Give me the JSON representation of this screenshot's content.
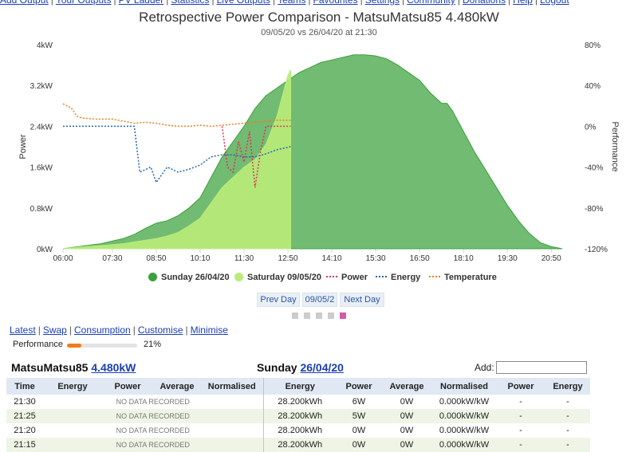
{
  "nav": {
    "links": [
      "Add Output",
      "Your Outputs",
      "PV Ladder",
      "Statistics",
      "Live Outputs",
      "Teams",
      "Favourites",
      "Settings",
      "Community",
      "Donations",
      "Help",
      "Logout"
    ]
  },
  "chart": {
    "title": "Retrospective Power Comparison - MatsuMatsu85 4.480kW",
    "subtitle": "09/05/20 vs 26/04/20 at 21:30"
  },
  "chart_data": {
    "type": "area",
    "x_ticks": [
      "06:00",
      "07:30",
      "08:50",
      "10:10",
      "11:30",
      "12:50",
      "14:10",
      "15:30",
      "16:50",
      "18:10",
      "19:30",
      "20:50"
    ],
    "y_left": {
      "label": "Power",
      "ticks": [
        "0kW",
        "0.8kW",
        "1.6kW",
        "2.4kW",
        "3.2kW",
        "4kW"
      ],
      "range": [
        0,
        4
      ]
    },
    "y_right": {
      "label": "Performance",
      "ticks": [
        "-120%",
        "-80%",
        "-40%",
        "0%",
        "40%",
        "80%"
      ],
      "range": [
        -120,
        80
      ]
    },
    "colors": {
      "sunday": "#3ba13b",
      "saturday": "#b8ec7a",
      "power": "#e0364e",
      "energy": "#2166ac",
      "temperature": "#f07c1b"
    },
    "series": [
      {
        "name": "Sunday 26/04/20",
        "unit": "kW",
        "points": [
          [
            "06:00",
            0
          ],
          [
            "06:35",
            0.05
          ],
          [
            "07:10",
            0.1
          ],
          [
            "07:30",
            0.15
          ],
          [
            "07:50",
            0.2
          ],
          [
            "08:10",
            0.28
          ],
          [
            "08:30",
            0.4
          ],
          [
            "08:50",
            0.5
          ],
          [
            "09:10",
            0.55
          ],
          [
            "09:30",
            0.65
          ],
          [
            "09:50",
            0.8
          ],
          [
            "10:10",
            1.0
          ],
          [
            "10:30",
            1.4
          ],
          [
            "10:50",
            1.8
          ],
          [
            "11:10",
            2.1
          ],
          [
            "11:30",
            2.4
          ],
          [
            "11:50",
            2.75
          ],
          [
            "12:10",
            3.0
          ],
          [
            "12:30",
            3.15
          ],
          [
            "12:50",
            3.3
          ],
          [
            "13:10",
            3.45
          ],
          [
            "13:30",
            3.55
          ],
          [
            "13:50",
            3.65
          ],
          [
            "14:10",
            3.7
          ],
          [
            "14:30",
            3.75
          ],
          [
            "14:50",
            3.8
          ],
          [
            "15:10",
            3.8
          ],
          [
            "15:30",
            3.78
          ],
          [
            "15:50",
            3.72
          ],
          [
            "16:10",
            3.6
          ],
          [
            "16:30",
            3.45
          ],
          [
            "16:50",
            3.3
          ],
          [
            "17:10",
            3.05
          ],
          [
            "17:30",
            2.85
          ],
          [
            "17:40",
            2.85
          ],
          [
            "17:50",
            2.7
          ],
          [
            "18:10",
            2.3
          ],
          [
            "18:30",
            1.9
          ],
          [
            "18:50",
            1.55
          ],
          [
            "19:10",
            1.2
          ],
          [
            "19:30",
            0.85
          ],
          [
            "19:50",
            0.55
          ],
          [
            "20:10",
            0.3
          ],
          [
            "20:30",
            0.12
          ],
          [
            "20:50",
            0.04
          ],
          [
            "21:10",
            0.0
          ]
        ]
      },
      {
        "name": "Saturday 09/05/20",
        "unit": "kW",
        "points": [
          [
            "06:00",
            0
          ],
          [
            "06:40",
            0.04
          ],
          [
            "07:20",
            0.07
          ],
          [
            "07:50",
            0.1
          ],
          [
            "08:20",
            0.15
          ],
          [
            "08:50",
            0.2
          ],
          [
            "09:10",
            0.25
          ],
          [
            "09:30",
            0.32
          ],
          [
            "09:50",
            0.45
          ],
          [
            "10:10",
            0.6
          ],
          [
            "10:30",
            0.9
          ],
          [
            "10:50",
            1.2
          ],
          [
            "11:10",
            1.4
          ],
          [
            "11:30",
            1.6
          ],
          [
            "11:50",
            1.75
          ],
          [
            "12:10",
            2.05
          ],
          [
            "12:30",
            2.6
          ],
          [
            "12:50",
            3.4
          ],
          [
            "12:55",
            3.5
          ]
        ]
      },
      {
        "name": "Power",
        "axis": "right",
        "unit": "%",
        "points": [
          [
            "10:50",
            0
          ],
          [
            "11:00",
            -40
          ],
          [
            "11:10",
            -45
          ],
          [
            "11:20",
            -15
          ],
          [
            "11:30",
            -35
          ],
          [
            "11:40",
            -5
          ],
          [
            "11:50",
            -60
          ],
          [
            "12:00",
            -25
          ],
          [
            "12:10",
            0
          ],
          [
            "12:30",
            0
          ],
          [
            "12:55",
            0
          ]
        ]
      },
      {
        "name": "Energy",
        "axis": "right",
        "unit": "%",
        "points": [
          [
            "06:00",
            0
          ],
          [
            "08:10",
            0
          ],
          [
            "08:20",
            -45
          ],
          [
            "08:40",
            -40
          ],
          [
            "08:50",
            -55
          ],
          [
            "09:10",
            -40
          ],
          [
            "09:30",
            -45
          ],
          [
            "09:50",
            -42
          ],
          [
            "10:10",
            -38
          ],
          [
            "10:30",
            -30
          ],
          [
            "10:50",
            -28
          ],
          [
            "11:10",
            -28
          ],
          [
            "11:30",
            -30
          ],
          [
            "11:50",
            -30
          ],
          [
            "12:10",
            -27
          ],
          [
            "12:30",
            -23
          ],
          [
            "12:55",
            -20
          ]
        ]
      },
      {
        "name": "Temperature",
        "axis": "right",
        "unit": "%",
        "points": [
          [
            "06:00",
            22
          ],
          [
            "06:15",
            18
          ],
          [
            "06:25",
            10
          ],
          [
            "06:35",
            8
          ],
          [
            "07:00",
            7
          ],
          [
            "07:30",
            7
          ],
          [
            "07:50",
            5
          ],
          [
            "08:10",
            3
          ],
          [
            "08:30",
            4
          ],
          [
            "08:50",
            3
          ],
          [
            "09:10",
            1
          ],
          [
            "09:30",
            0
          ],
          [
            "09:50",
            0
          ],
          [
            "10:10",
            1
          ],
          [
            "10:30",
            0
          ],
          [
            "10:50",
            1
          ],
          [
            "11:10",
            2
          ],
          [
            "11:30",
            3
          ],
          [
            "11:50",
            4
          ],
          [
            "12:10",
            5
          ],
          [
            "12:30",
            6
          ],
          [
            "12:55",
            6
          ]
        ]
      }
    ],
    "legend_position": "bottom",
    "grid": false
  },
  "legend": {
    "items": [
      "Sunday 26/04/20",
      "Saturday 09/05/20",
      "Power",
      "Energy",
      "Temperature"
    ]
  },
  "day_controls": {
    "prev": "Prev Day",
    "current": "09/05/2",
    "next": "Next Day"
  },
  "pager": {
    "count": 5,
    "active": 4,
    "active_color": "#d65aa8"
  },
  "links": [
    "Latest",
    "Swap",
    "Consumption",
    "Customise",
    "Minimise"
  ],
  "performance": {
    "label": "Performance",
    "value": "21%",
    "fraction": 0.21
  },
  "left_header": {
    "system": "MatsuMatsu85",
    "size": "4.480kW"
  },
  "right_header": {
    "day": "Sunday",
    "date": "26/04/20"
  },
  "add": {
    "label": "Add:",
    "value": ""
  },
  "table": {
    "columns": [
      "Time",
      "Energy",
      "Power",
      "Average",
      "Normalised",
      "Energy",
      "Power",
      "Average",
      "Normalised",
      "Power",
      "Energy"
    ],
    "rows": [
      {
        "time": "21:30",
        "left": "NO DATA RECORDED",
        "energy": "28.200kWh",
        "power": "6W",
        "average": "0W",
        "normalised": "0.000kW/kW",
        "power2": "-",
        "energy2": "-"
      },
      {
        "time": "21:25",
        "left": "NO DATA RECORDED",
        "energy": "28.200kWh",
        "power": "5W",
        "average": "0W",
        "normalised": "0.000kW/kW",
        "power2": "-",
        "energy2": "-"
      },
      {
        "time": "21:20",
        "left": "NO DATA RECORDED",
        "energy": "28.200kWh",
        "power": "0W",
        "average": "0W",
        "normalised": "0.000kW/kW",
        "power2": "-",
        "energy2": "-"
      },
      {
        "time": "21:15",
        "left": "NO DATA RECORDED",
        "energy": "28.200kWh",
        "power": "0W",
        "average": "0W",
        "normalised": "0.000kW/kW",
        "power2": "-",
        "energy2": "-"
      }
    ]
  }
}
